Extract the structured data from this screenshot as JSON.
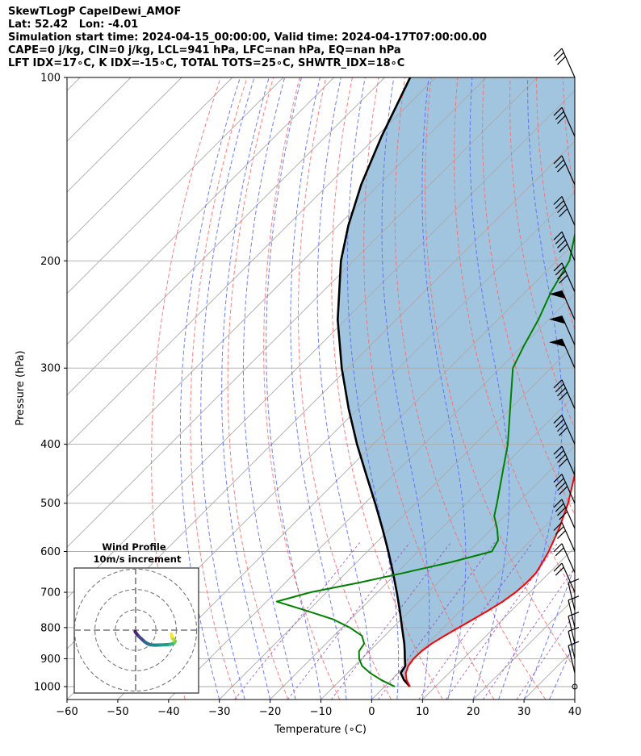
{
  "header": {
    "line1": "SkewTLogP CapelDewi_AMOF",
    "line2": "Lat: 52.42   Lon: -4.01",
    "line3": "Simulation start time: 2024-04-15_00:00:00, Valid time: 2024-04-17T07:00:00.00",
    "line4": "CAPE=0 j/kg, CIN=0 j/kg, LCL=941 hPa, LFC=nan hPa, EQ=nan hPa",
    "line5": "LFT IDX=17∘C, K IDX=-15∘C, TOTAL TOTS=25∘C, SHWTR_IDX=18∘C"
  },
  "chart_data": {
    "type": "line",
    "subtype": "skew-T log-P",
    "xlabel": "Temperature (∘C)",
    "ylabel": "Pressure (hPa)",
    "xlim": [
      -60,
      40
    ],
    "ylim": [
      1050,
      100
    ],
    "y_scale": "log",
    "grid": true,
    "x_ticks": [
      -60,
      -50,
      -40,
      -30,
      -20,
      -10,
      0,
      10,
      20,
      30,
      40
    ],
    "x_tick_labels": [
      "−60",
      "−50",
      "−40",
      "−30",
      "−20",
      "−10",
      "0",
      "10",
      "20",
      "30",
      "40"
    ],
    "y_ticks": [
      1000,
      900,
      800,
      700,
      600,
      500,
      400,
      300,
      200,
      100
    ],
    "y_tick_labels": [
      "1000",
      "900",
      "800",
      "700",
      "600",
      "500",
      "400",
      "300",
      "200",
      "100"
    ],
    "colors": {
      "temperature": "#ff0000",
      "dewpoint": "#008000",
      "parcel": "#000000",
      "fill": "#a1c5df",
      "dry_adiabat": "#ff6666",
      "moist_adiabat": "#5566ff",
      "mixing_ratio": "#9944bb",
      "isotherm": "#aaaaaa"
    },
    "series": [
      {
        "key": "temperature",
        "pressure": [
          1000,
          975,
          950,
          925,
          900,
          875,
          850,
          825,
          800,
          775,
          750,
          725,
          700,
          675,
          650,
          625,
          600,
          550,
          500,
          450,
          400,
          350,
          300,
          275,
          250,
          225,
          200,
          175,
          150,
          125,
          100
        ],
        "values": [
          5,
          3,
          1.5,
          0.6,
          0.2,
          0.3,
          0.8,
          1.8,
          3,
          4.2,
          5.4,
          6.5,
          7.2,
          7.5,
          7.4,
          6.6,
          5.7,
          3.2,
          0,
          -4.2,
          -10,
          -17,
          -23.2,
          -25.5,
          -25.8,
          -24.5,
          -21.5,
          -12.5,
          -5.5,
          -0.5,
          1.8
        ]
      },
      {
        "key": "dewpoint",
        "pressure": [
          1000,
          975,
          950,
          925,
          900,
          875,
          850,
          825,
          800,
          775,
          750,
          725,
          700,
          675,
          650,
          625,
          600,
          575,
          550,
          525,
          500,
          450,
          400,
          350,
          300,
          275,
          250,
          225,
          200,
          175,
          150,
          125,
          100
        ],
        "values": [
          2,
          -2,
          -5.5,
          -8.5,
          -10.5,
          -12,
          -12.5,
          -14.5,
          -18.5,
          -23.5,
          -30.5,
          -38,
          -33.2,
          -25.5,
          -18.5,
          -11.5,
          -5.5,
          -6.5,
          -9,
          -12,
          -14,
          -18.5,
          -23.5,
          -30,
          -37.5,
          -39.8,
          -42,
          -45,
          -47.5,
          -53,
          -51,
          -46.5,
          -40.8
        ]
      },
      {
        "key": "parcel",
        "pressure": [
          1000,
          975,
          950,
          925,
          900,
          875,
          850,
          800,
          750,
          700,
          650,
          600,
          550,
          500,
          450,
          400,
          350,
          300,
          250,
          200,
          175,
          150,
          125,
          100
        ],
        "values": [
          5,
          2.5,
          0.5,
          0,
          -1.5,
          -3,
          -4.6,
          -8.2,
          -12,
          -16.2,
          -20.8,
          -25.9,
          -31.6,
          -38,
          -45.2,
          -53.2,
          -61.8,
          -71.2,
          -81.5,
          -92.5,
          -98,
          -103.5,
          -109,
          -115
        ]
      }
    ],
    "wind_barbs": [
      {
        "pressure": 100,
        "type": "barbs3",
        "dir": "left"
      },
      {
        "pressure": 125,
        "type": "barbs3",
        "dir": "left"
      },
      {
        "pressure": 150,
        "type": "barbs3",
        "dir": "left"
      },
      {
        "pressure": 175,
        "type": "barbs4",
        "dir": "left"
      },
      {
        "pressure": 200,
        "type": "barbs4",
        "dir": "left"
      },
      {
        "pressure": 225,
        "type": "barbs4",
        "dir": "left"
      },
      {
        "pressure": 250,
        "type": "flag",
        "dir": "left"
      },
      {
        "pressure": 275,
        "type": "flag",
        "dir": "left"
      },
      {
        "pressure": 300,
        "type": "flag",
        "dir": "left"
      },
      {
        "pressure": 350,
        "type": "barbs4",
        "dir": "left"
      },
      {
        "pressure": 400,
        "type": "barbs4",
        "dir": "left"
      },
      {
        "pressure": 450,
        "type": "barbs4",
        "dir": "left"
      },
      {
        "pressure": 500,
        "type": "barbs4",
        "dir": "left"
      },
      {
        "pressure": 550,
        "type": "barbs4",
        "dir": "left"
      },
      {
        "pressure": 600,
        "type": "barbs3",
        "dir": "left"
      },
      {
        "pressure": 650,
        "type": "barbs2",
        "dir": "left"
      },
      {
        "pressure": 700,
        "type": "barbs2",
        "dir": "left"
      },
      {
        "pressure": 750,
        "type": "barbs1",
        "dir": "right"
      },
      {
        "pressure": 800,
        "type": "barbs1",
        "dir": "right"
      },
      {
        "pressure": 850,
        "type": "barbs1",
        "dir": "right"
      },
      {
        "pressure": 900,
        "type": "barbs1",
        "dir": "right"
      },
      {
        "pressure": 950,
        "type": "barbs1",
        "dir": "right"
      },
      {
        "pressure": 1000,
        "type": "calm",
        "dir": "right"
      }
    ],
    "inset": {
      "title_line1": "Wind Profile",
      "title_line2": "10m/s increment",
      "hodograph": [
        [
          -0.2,
          -0.8
        ],
        [
          0.1,
          -1.2
        ],
        [
          0.6,
          -2.0
        ],
        [
          1.6,
          -3.1
        ],
        [
          3.0,
          -4.4
        ],
        [
          4.4,
          -5.7
        ],
        [
          5.8,
          -6.6
        ],
        [
          7.2,
          -7.2
        ],
        [
          9.4,
          -7.4
        ],
        [
          12.2,
          -7.3
        ],
        [
          14.6,
          -7.2
        ],
        [
          17.0,
          -7.0
        ],
        [
          18.4,
          -6.6
        ],
        [
          19.2,
          -6.1
        ],
        [
          19.4,
          -5.4
        ],
        [
          18.8,
          -4.7
        ],
        [
          18.0,
          -3.8
        ],
        [
          17.8,
          -3.2
        ],
        [
          17.6,
          -2.0
        ]
      ],
      "rings": [
        10,
        20,
        30
      ]
    }
  }
}
